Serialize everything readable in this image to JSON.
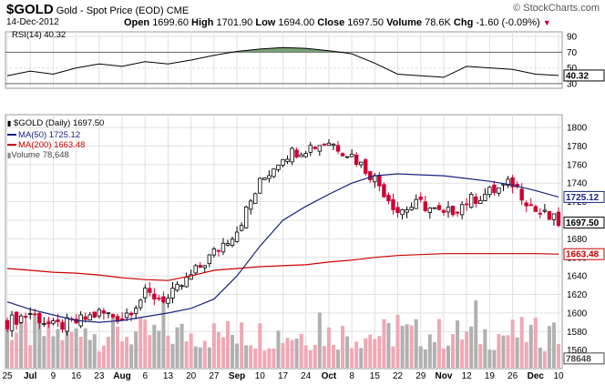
{
  "header": {
    "symbol": "$GOLD",
    "name": "Gold - Spot Price (EOD)",
    "exchange": "CME",
    "date": "14-Dec-2012",
    "open_label": "Open",
    "open": "1699.60",
    "high_label": "High",
    "high": "1701.90",
    "low_label": "Low",
    "low": "1694.00",
    "close_label": "Close",
    "close": "1697.50",
    "volume_label": "Volume",
    "volume": "78.6K",
    "chg_label": "Chg",
    "chg": "-1.60 (-0.09%)",
    "brand": "© StockCharts.com"
  },
  "colors": {
    "up": "#000000",
    "down": "#cc0033",
    "ma50": "#1a237e",
    "ma200": "#cc0000",
    "vol_up": "#b0b0b0",
    "vol_down": "#f0a8b4",
    "rsi": "#000000",
    "rsi_fill": "#5a8a5a",
    "grid": "#e0e0e0"
  },
  "chart_data": {
    "type": "candlestick",
    "x": [
      "Jun 25",
      "Jul",
      "Jul 9",
      "Jul 16",
      "Jul 23",
      "Aug",
      "Aug 6",
      "Aug 13",
      "Aug 20",
      "Aug 27",
      "Sep",
      "Sep 10",
      "Sep 17",
      "Sep 24",
      "Oct",
      "Oct 8",
      "Oct 15",
      "Oct 22",
      "Oct 29",
      "Nov",
      "Nov 12",
      "Nov 19",
      "Nov 26",
      "Dec",
      "Dec 10"
    ],
    "x_tick_labels": [
      "25",
      "Jul",
      "9",
      "16",
      "23",
      "Aug",
      "6",
      "13",
      "20",
      "27",
      "Sep",
      "10",
      "17",
      "24",
      "Oct",
      "8",
      "15",
      "22",
      "29",
      "Nov",
      "12",
      "19",
      "26",
      "Dec",
      "10"
    ],
    "weekly_close": [
      1590,
      1600,
      1585,
      1590,
      1600,
      1595,
      1620,
      1615,
      1640,
      1665,
      1690,
      1740,
      1770,
      1778,
      1785,
      1770,
      1745,
      1710,
      1718,
      1705,
      1720,
      1730,
      1740,
      1710,
      1697.5
    ],
    "ma50": [
      1612,
      1604,
      1598,
      1592,
      1590,
      1592,
      1596,
      1600,
      1605,
      1615,
      1640,
      1672,
      1700,
      1715,
      1728,
      1740,
      1748,
      1750,
      1749,
      1748,
      1745,
      1742,
      1738,
      1732,
      1725.12
    ],
    "ma200": [
      1648,
      1646,
      1644,
      1643,
      1641,
      1638,
      1636,
      1635,
      1640,
      1646,
      1648,
      1650,
      1651,
      1652,
      1655,
      1657,
      1660,
      1662,
      1663,
      1664,
      1664,
      1664,
      1664,
      1664,
      1663.48
    ],
    "price_ylim": [
      1543,
      1805
    ],
    "price_ticks": [
      1560,
      1580,
      1600,
      1620,
      1640,
      1660,
      1680,
      1700,
      1720,
      1740,
      1760,
      1780,
      1800
    ],
    "price_tick_labels": [
      "1560",
      "1580",
      "1600",
      "1620",
      "1640",
      "1660",
      "1680",
      "1700",
      "1720",
      "1740",
      "1760",
      "1780",
      "1800"
    ],
    "last_price": 1697.5,
    "last_price_label": "1697.50",
    "ma50_last_label": "1725.12",
    "ma200_last_label": "1663.48",
    "volume_last_label": "78648",
    "rsi": {
      "label": "RSI(14) 40.32",
      "values": [
        40,
        46,
        42,
        50,
        55,
        52,
        58,
        55,
        60,
        66,
        71,
        74,
        76,
        75,
        72,
        68,
        56,
        42,
        40,
        38,
        52,
        50,
        48,
        42,
        40.32
      ],
      "ylim": [
        24,
        96
      ],
      "ticks": [
        30,
        50,
        70,
        90
      ],
      "tick_labels": [
        "30",
        "50",
        "70",
        "90"
      ],
      "last_label": "40.32"
    },
    "legend": [
      {
        "label": "$GOLD (Daily) 1697.50",
        "key": "price"
      },
      {
        "label": "MA(50) 1725.12",
        "key": "ma50"
      },
      {
        "label": "MA(200) 1663.48",
        "key": "ma200"
      },
      {
        "label": "Volume 78,648",
        "key": "volume"
      }
    ]
  }
}
